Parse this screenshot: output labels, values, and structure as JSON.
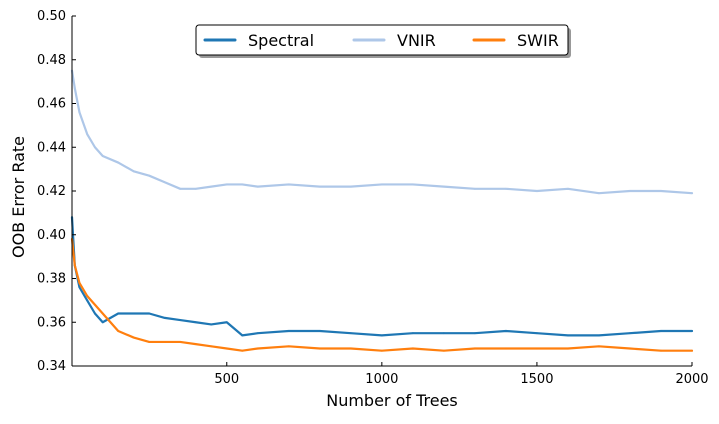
{
  "chart_data": {
    "type": "line",
    "title": "",
    "xlabel": "Number of Trees",
    "ylabel": "OOB Error Rate",
    "xlim": [
      1,
      2000
    ],
    "ylim": [
      0.34,
      0.5
    ],
    "x_ticks": [
      500,
      1000,
      1500,
      2000
    ],
    "y_ticks": [
      0.34,
      0.36,
      0.38,
      0.4,
      0.42,
      0.44,
      0.46,
      0.48,
      0.5
    ],
    "x_tick_labels": [
      "500",
      "1000",
      "1500",
      "2000"
    ],
    "y_tick_labels": [
      "0.34",
      "0.36",
      "0.38",
      "0.40",
      "0.42",
      "0.44",
      "0.46",
      "0.48",
      "0.50"
    ],
    "grid": false,
    "legend": {
      "placement": "top-center",
      "entries": [
        "Spectral",
        "VNIR",
        "SWIR"
      ]
    },
    "x": [
      1,
      10,
      25,
      50,
      75,
      100,
      150,
      200,
      250,
      300,
      350,
      400,
      450,
      500,
      550,
      600,
      700,
      800,
      900,
      1000,
      1100,
      1200,
      1300,
      1400,
      1500,
      1600,
      1700,
      1800,
      1900,
      2000
    ],
    "series": [
      {
        "name": "Spectral",
        "color": "#1f77b4",
        "values": [
          0.408,
          0.386,
          0.376,
          0.37,
          0.364,
          0.36,
          0.364,
          0.364,
          0.364,
          0.362,
          0.361,
          0.36,
          0.359,
          0.36,
          0.354,
          0.355,
          0.356,
          0.356,
          0.355,
          0.354,
          0.355,
          0.355,
          0.355,
          0.356,
          0.355,
          0.354,
          0.354,
          0.355,
          0.356,
          0.356
        ]
      },
      {
        "name": "VNIR",
        "color": "#aec7e8",
        "values": [
          0.475,
          0.467,
          0.456,
          0.446,
          0.44,
          0.436,
          0.433,
          0.429,
          0.427,
          0.424,
          0.421,
          0.421,
          0.422,
          0.423,
          0.423,
          0.422,
          0.423,
          0.422,
          0.422,
          0.423,
          0.423,
          0.422,
          0.421,
          0.421,
          0.42,
          0.421,
          0.419,
          0.42,
          0.42,
          0.419
        ]
      },
      {
        "name": "SWIR",
        "color": "#ff7f0e",
        "values": [
          0.398,
          0.386,
          0.378,
          0.372,
          0.368,
          0.364,
          0.356,
          0.353,
          0.351,
          0.351,
          0.351,
          0.35,
          0.349,
          0.348,
          0.347,
          0.348,
          0.349,
          0.348,
          0.348,
          0.347,
          0.348,
          0.347,
          0.348,
          0.348,
          0.348,
          0.348,
          0.349,
          0.348,
          0.347,
          0.347
        ]
      }
    ]
  }
}
